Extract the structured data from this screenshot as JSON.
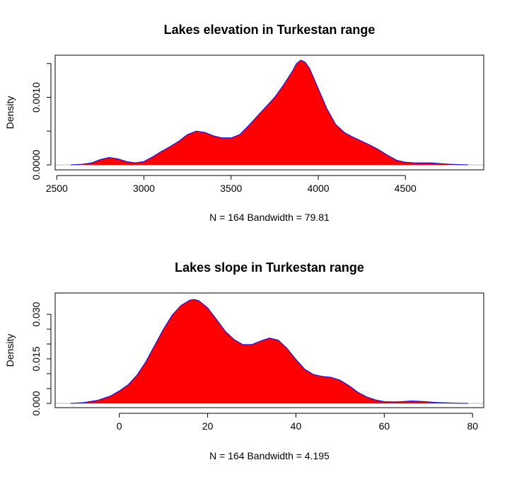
{
  "chart_data": [
    {
      "type": "area",
      "title": "Lakes elevation in Turkestan range",
      "xlabel": "N = 164   Bandwidth = 79.81",
      "ylabel": "Density",
      "xlim": [
        2580,
        4860
      ],
      "ylim": [
        0,
        0.00155
      ],
      "xticks": [
        2500,
        3000,
        3500,
        4000,
        4500
      ],
      "xtick_labels": [
        "2500",
        "3000",
        "3500",
        "4000",
        "4500"
      ],
      "yticks": [
        0,
        0.0005,
        0.001,
        0.0015
      ],
      "ytick_labels": [
        "0.0000",
        "",
        "0.0010",
        ""
      ],
      "fill_color": "#ff0000",
      "line_color": "#0000ff",
      "baseline_color": "#bebebe",
      "series": [
        {
          "x": [
            2580,
            2650,
            2700,
            2750,
            2800,
            2850,
            2900,
            2950,
            3000,
            3050,
            3100,
            3150,
            3200,
            3250,
            3300,
            3350,
            3400,
            3450,
            3500,
            3550,
            3600,
            3650,
            3700,
            3750,
            3800,
            3850,
            3875,
            3900,
            3925,
            3950,
            4000,
            4050,
            4100,
            4150,
            4200,
            4250,
            4300,
            4350,
            4400,
            4450,
            4500,
            4550,
            4600,
            4650,
            4700,
            4750,
            4800,
            4860
          ],
          "values": [
            0,
            1e-05,
            3e-05,
            8e-05,
            0.00011,
            9e-05,
            5e-05,
            3e-05,
            5e-05,
            0.00012,
            0.0002,
            0.00027,
            0.00035,
            0.00045,
            0.0005,
            0.00048,
            0.00043,
            0.0004,
            0.0004,
            0.00045,
            0.00058,
            0.00072,
            0.00086,
            0.001,
            0.00118,
            0.00138,
            0.0015,
            0.00155,
            0.00152,
            0.00143,
            0.00113,
            0.00083,
            0.0006,
            0.00048,
            0.00041,
            0.00035,
            0.00029,
            0.00022,
            0.00014,
            7e-05,
            4e-05,
            3e-05,
            3e-05,
            3e-05,
            2e-05,
            1e-05,
            5e-06,
            0
          ]
        }
      ]
    },
    {
      "type": "area",
      "title": "Lakes slope in Turkestan range",
      "xlabel": "N = 164   Bandwidth = 4.195",
      "ylabel": "Density",
      "xlim": [
        -11,
        79
      ],
      "ylim": [
        0,
        0.0355
      ],
      "xticks": [
        0,
        20,
        40,
        60,
        80
      ],
      "xtick_labels": [
        "0",
        "20",
        "40",
        "60",
        "80"
      ],
      "yticks": [
        0,
        0.005,
        0.01,
        0.015,
        0.02,
        0.025,
        0.03
      ],
      "ytick_labels": [
        "0.000",
        "",
        "",
        "0.015",
        "",
        "",
        "0.030"
      ],
      "fill_color": "#ff0000",
      "line_color": "#0000ff",
      "baseline_color": "#bebebe",
      "series": [
        {
          "x": [
            -11,
            -8,
            -5,
            -2,
            0,
            2,
            4,
            6,
            8,
            10,
            12,
            14,
            16,
            17,
            18,
            20,
            22,
            24,
            26,
            28,
            30,
            32,
            34,
            36,
            38,
            40,
            42,
            44,
            46,
            48,
            50,
            52,
            54,
            56,
            58,
            60,
            62,
            64,
            66,
            68,
            70,
            72,
            74,
            76,
            79
          ],
          "values": [
            0,
            0.0003,
            0.001,
            0.0025,
            0.0042,
            0.0063,
            0.0095,
            0.014,
            0.0195,
            0.025,
            0.0298,
            0.033,
            0.0348,
            0.035,
            0.0346,
            0.0322,
            0.0283,
            0.0243,
            0.0215,
            0.0198,
            0.0198,
            0.021,
            0.022,
            0.0213,
            0.0185,
            0.0148,
            0.0115,
            0.0097,
            0.0091,
            0.0088,
            0.0078,
            0.006,
            0.0038,
            0.0022,
            0.0012,
            0.0006,
            0.0005,
            0.0006,
            0.0008,
            0.0007,
            0.0005,
            0.0003,
            0.0002,
            0.0001,
            0
          ]
        }
      ]
    }
  ]
}
